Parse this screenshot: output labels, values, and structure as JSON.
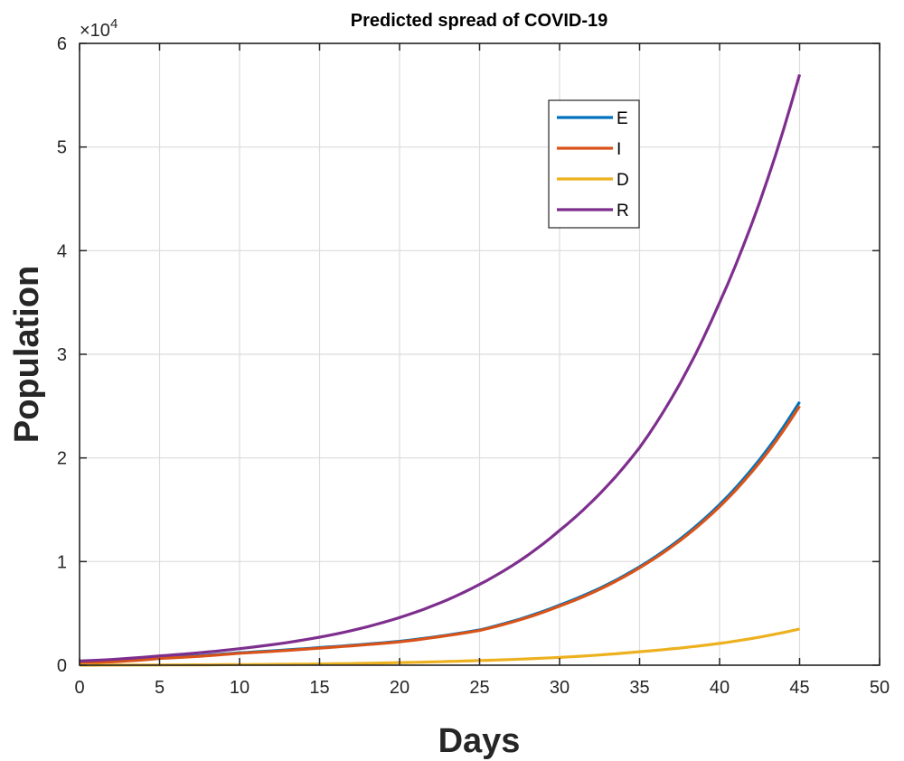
{
  "chart_data": {
    "type": "line",
    "title": "Predicted spread of COVID-19",
    "xlabel": "Days",
    "ylabel": "Population",
    "y_exponent_label": "×10",
    "y_exponent_power": "4",
    "xlim": [
      0,
      50
    ],
    "ylim": [
      0,
      60000
    ],
    "x_ticks": [
      0,
      5,
      10,
      15,
      20,
      25,
      30,
      35,
      40,
      45,
      50
    ],
    "x_tick_labels": [
      "0",
      "5",
      "10",
      "15",
      "20",
      "25",
      "30",
      "35",
      "40",
      "45",
      "50"
    ],
    "y_ticks": [
      0,
      10000,
      20000,
      30000,
      40000,
      50000,
      60000
    ],
    "y_tick_labels": [
      "0",
      "1",
      "2",
      "3",
      "4",
      "5",
      "6"
    ],
    "grid": true,
    "legend_position": "top-right-inside",
    "x": [
      0,
      5,
      10,
      15,
      20,
      25,
      30,
      35,
      40,
      45
    ],
    "series": [
      {
        "name": "E",
        "color": "#0072BD",
        "values": [
          250,
          700,
          1200,
          1700,
          2300,
          3400,
          5800,
          9500,
          15500,
          25400
        ]
      },
      {
        "name": "I",
        "color": "#D95319",
        "values": [
          200,
          650,
          1150,
          1650,
          2250,
          3350,
          5700,
          9400,
          15300,
          25000
        ]
      },
      {
        "name": "D",
        "color": "#EDB120",
        "values": [
          0,
          20,
          60,
          120,
          250,
          450,
          750,
          1300,
          2100,
          3500
        ]
      },
      {
        "name": "R",
        "color": "#7E2F8E",
        "values": [
          400,
          900,
          1600,
          2700,
          4600,
          7800,
          13000,
          21000,
          35000,
          57000
        ]
      }
    ]
  }
}
